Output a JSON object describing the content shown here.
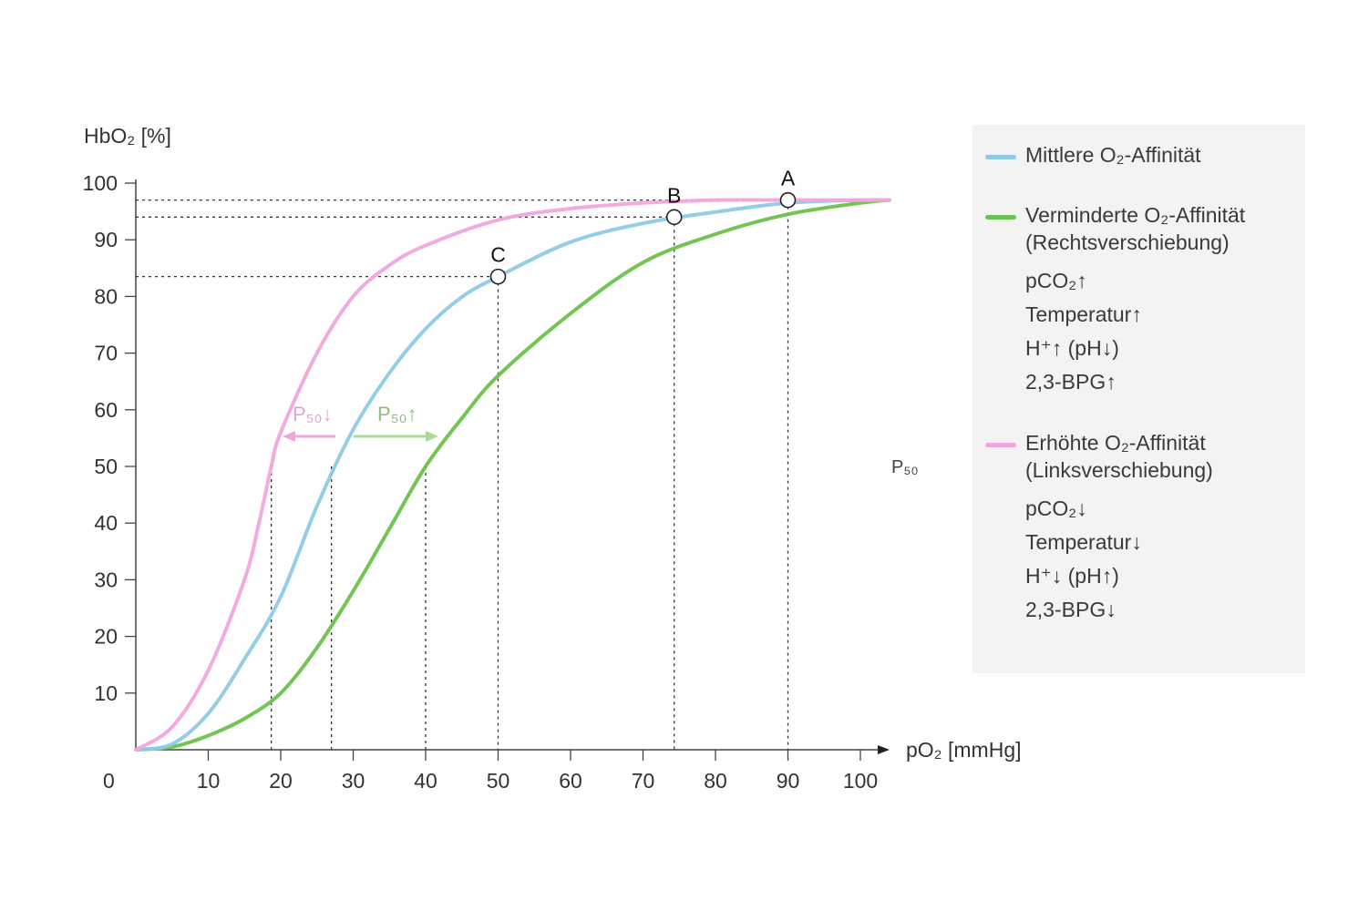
{
  "chart_data": {
    "type": "line",
    "xlabel": "pO₂ [mmHg]",
    "ylabel": "HbO₂ [%]",
    "xlim": [
      0,
      104
    ],
    "ylim": [
      0,
      100
    ],
    "x_ticks": [
      "10",
      "20",
      "30",
      "40",
      "50",
      "60",
      "70",
      "80",
      "90",
      "100"
    ],
    "y_ticks": [
      "10",
      "20",
      "30",
      "40",
      "50",
      "60",
      "70",
      "80",
      "90",
      "100"
    ],
    "origin_label": "0",
    "grid": false,
    "legend_placement": "right",
    "series": [
      {
        "name": "Mittlere O₂-Affinität",
        "color": "#8ecae6",
        "x": [
          0,
          5,
          10,
          15,
          20,
          25,
          30,
          35,
          40,
          45,
          50,
          60,
          70,
          80,
          90,
          100,
          104
        ],
        "y": [
          0,
          1.0,
          6.4,
          16,
          27,
          43,
          56.5,
          66.5,
          74.3,
          79.9,
          83.5,
          89.6,
          92.9,
          94.9,
          96.5,
          97,
          97
        ]
      },
      {
        "name": "Verminderte O₂-Affinität (Rechtsverschiebung)",
        "color": "#6cc24a",
        "x": [
          0,
          5,
          10,
          15,
          20,
          25,
          30,
          35,
          40,
          45,
          50,
          60,
          70,
          80,
          90,
          100,
          104
        ],
        "y": [
          0,
          0.5,
          2.5,
          5.5,
          10,
          18,
          28,
          39,
          50,
          58.5,
          66,
          77,
          86,
          91,
          94.5,
          96.5,
          97
        ]
      },
      {
        "name": "Erhöhte O₂-Affinität (Linksverschiebung)",
        "color": "#f0a6dc",
        "x": [
          0,
          5,
          10,
          15,
          17,
          18.7,
          20,
          25,
          30,
          35,
          40,
          50,
          60,
          70,
          80,
          90,
          104
        ],
        "y": [
          0,
          4,
          14,
          30,
          40,
          50,
          56,
          70,
          80,
          85.5,
          89,
          93.5,
          95.5,
          96.5,
          97,
          97,
          97
        ]
      }
    ],
    "p50": {
      "label": "P₅₀",
      "values": [
        18.7,
        27,
        40
      ]
    },
    "points": [
      {
        "label": "A",
        "x": 90,
        "y": 97
      },
      {
        "label": "B",
        "x": 74.3,
        "y": 94
      },
      {
        "label": "C",
        "x": 50,
        "y": 83.5
      }
    ],
    "annotations": {
      "p50_down": "P₅₀↓",
      "p50_up": "P₅₀↑",
      "p50_down_color": "#e8a0d4",
      "p50_up_color": "#8dbf7a"
    }
  },
  "legend": {
    "items": [
      {
        "label": "Mittlere O₂-Affinität",
        "color": "#8ecae6"
      },
      {
        "label": "Verminderte O₂-Affinität",
        "sublabel": "(Rechtsverschiebung)",
        "color": "#6cc24a",
        "factors": [
          "pCO₂↑",
          "Temperatur↑",
          "H⁺↑ (pH↓)",
          "2,3-BPG↑"
        ]
      },
      {
        "label": "Erhöhte O₂-Affinität",
        "sublabel": "(Linksverschiebung)",
        "color": "#f0a6dc",
        "factors": [
          "pCO₂↓",
          "Temperatur↓",
          "H⁺↓ (pH↑)",
          "2,3-BPG↓"
        ]
      }
    ]
  }
}
